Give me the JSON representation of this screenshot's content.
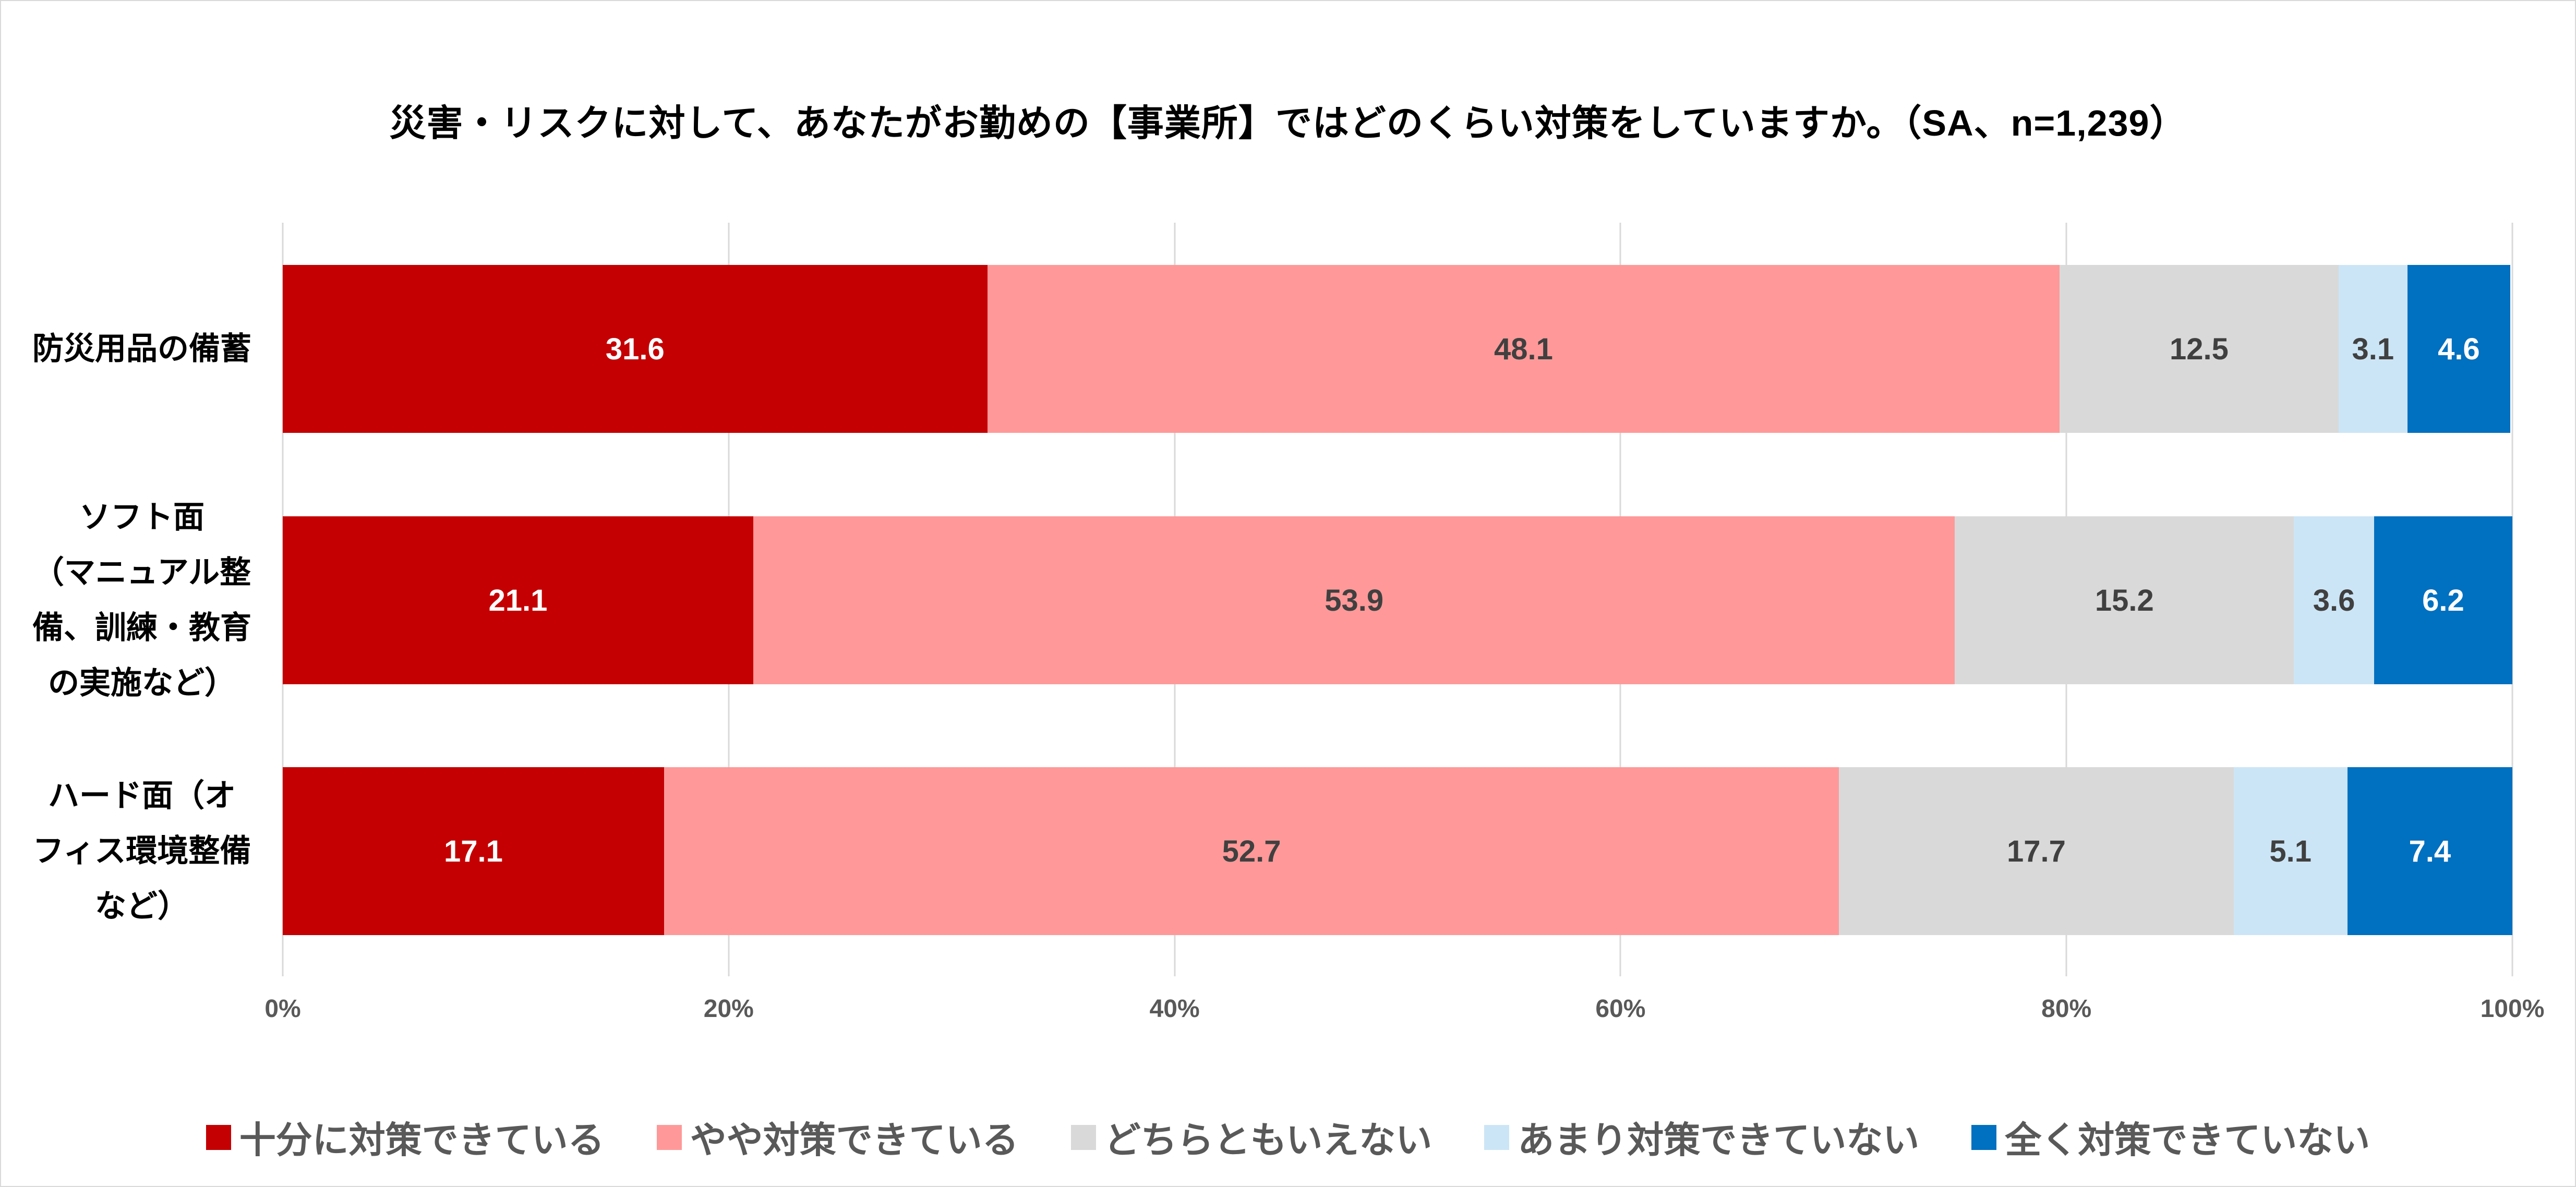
{
  "title": "災害・リスクに対して、あなたがお勤めの【事業所】ではどのくらい対策をしていますか。（SA、n=1,239）",
  "chart_data": {
    "type": "bar",
    "orientation": "horizontal",
    "stacked": true,
    "grid": "vertical",
    "legend_position": "bottom",
    "xlim": [
      0,
      100
    ],
    "x_ticks": [
      "0%",
      "20%",
      "40%",
      "60%",
      "80%",
      "100%"
    ],
    "x_tick_values": [
      0,
      20,
      40,
      60,
      80,
      100
    ],
    "categories": [
      {
        "lines": [
          "防災用品の備蓄"
        ]
      },
      {
        "lines": [
          "ソフト面",
          "（マニュアル整",
          "備、訓練・教育",
          "の実施など）"
        ]
      },
      {
        "lines": [
          "ハード面（オ",
          "フィス環境整備",
          "など）"
        ]
      }
    ],
    "series": [
      {
        "name": "十分に対策できている",
        "color": "#c40003",
        "label_color": "#ffffff",
        "values": [
          31.6,
          21.1,
          17.1
        ]
      },
      {
        "name": "やや対策できている",
        "color": "#ff9999",
        "label_color": "#404040",
        "values": [
          48.1,
          53.9,
          52.7
        ]
      },
      {
        "name": "どちらともいえない",
        "color": "#d9d9d9",
        "label_color": "#404040",
        "values": [
          12.5,
          15.2,
          17.7
        ]
      },
      {
        "name": "あまり対策できていない",
        "color": "#cce5f6",
        "label_color": "#404040",
        "values": [
          3.1,
          3.6,
          5.1
        ]
      },
      {
        "name": "全く対策できていない",
        "color": "#0070c0",
        "label_color": "#ffffff",
        "values": [
          4.6,
          6.2,
          7.4
        ]
      }
    ]
  },
  "colors": {
    "gridline": "#d9d9d9",
    "axis_text": "#595959",
    "title_text": "#000000",
    "border": "#d9d9d9"
  }
}
